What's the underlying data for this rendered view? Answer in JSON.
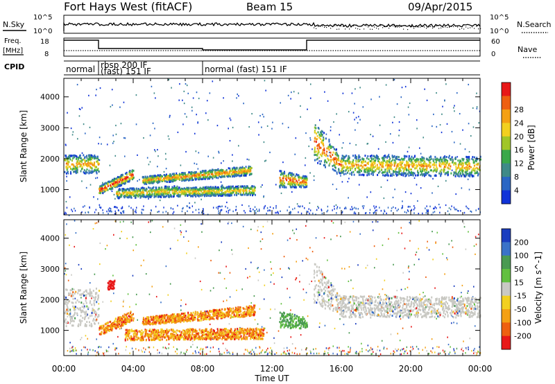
{
  "header": {
    "title": "Fort Hays West (fitACF)",
    "beam": "Beam 15",
    "date": "09/Apr/2015"
  },
  "strip_labels": {
    "nsky": "N.Sky",
    "nsearch": "N.Search",
    "freq_line1": "Freq.",
    "freq_line2": "[MHz]",
    "nave": "Nave",
    "cpid": "CPID"
  },
  "strip_ticks": {
    "noise_left": [
      "10^5",
      "10^0"
    ],
    "noise_right": [
      "10^5",
      "10^0"
    ],
    "freq_left": [
      "18",
      "8"
    ],
    "freq_right": [
      "60",
      "0"
    ]
  },
  "cpid_segments": [
    {
      "start": 0.0,
      "end": 2.0,
      "line1": "normal",
      "line2": ""
    },
    {
      "start": 2.0,
      "end": 8.0,
      "line1": "rbsp 200 IF",
      "line2": "(fast) 151 IF"
    },
    {
      "start": 8.0,
      "end": 24.0,
      "line1": "normal (fast) 151 IF",
      "line2": ""
    }
  ],
  "colors": {
    "power_scale": [
      "#1033d8",
      "#2a66c4",
      "#3f8a88",
      "#3aa84a",
      "#a0c628",
      "#f2d020",
      "#f4a014",
      "#ee6010",
      "#e81818"
    ],
    "velocity_scale": [
      "#1a3dbf",
      "#3a72c8",
      "#4a9a52",
      "#62c040",
      "#c9c9c4",
      "#f2d020",
      "#f4a014",
      "#ee6010",
      "#e81818"
    ],
    "ground_scatter": "#c8c8c2"
  },
  "chart_data": [
    {
      "type": "heatmap",
      "panel": "power",
      "ylabel": "Slant Range [km]",
      "xlabel": "Time UT",
      "colorbar_label": "Power [dB]",
      "colorbar_ticks": [
        "4",
        "8",
        "12",
        "16",
        "20",
        "24",
        "28"
      ],
      "xlim": [
        0,
        24
      ],
      "ylim": [
        180,
        4600
      ],
      "yticks": [
        1000,
        2000,
        3000,
        4000
      ],
      "xtick_labels": [
        "00:00",
        "04:00",
        "08:00",
        "12:00",
        "16:00",
        "20:00",
        "00:00"
      ],
      "scatter_bands": [
        {
          "t": [
            0.0,
            2.0
          ],
          "r_low": [
            1550,
            1550
          ],
          "r_high": [
            2150,
            2150
          ],
          "level": 0.55
        },
        {
          "t": [
            2.0,
            4.0
          ],
          "r_low": [
            850,
            1350
          ],
          "r_high": [
            1150,
            1700
          ],
          "level": 0.75
        },
        {
          "t": [
            3.0,
            6.5
          ],
          "r_low": [
            750,
            800
          ],
          "r_high": [
            1050,
            1150
          ],
          "level": 0.5
        },
        {
          "t": [
            4.5,
            10.8
          ],
          "r_low": [
            1200,
            1500
          ],
          "r_high": [
            1450,
            1800
          ],
          "level": 0.6
        },
        {
          "t": [
            6.5,
            11.0
          ],
          "r_low": [
            800,
            850
          ],
          "r_high": [
            1100,
            1150
          ],
          "level": 0.5
        },
        {
          "t": [
            12.4,
            14.0
          ],
          "r_low": [
            1100,
            1100
          ],
          "r_high": [
            1650,
            1450
          ],
          "level": 0.7
        },
        {
          "t": [
            14.4,
            16.0
          ],
          "r_low": [
            1900,
            1500
          ],
          "r_high": [
            3300,
            2100
          ],
          "level": 0.65
        },
        {
          "t": [
            16.0,
            24.0
          ],
          "r_low": [
            1500,
            1450
          ],
          "r_high": [
            2150,
            2100
          ],
          "level": 0.55
        }
      ]
    },
    {
      "type": "heatmap",
      "panel": "velocity",
      "ylabel": "Slant Range [km]",
      "xlabel": "Time UT",
      "colorbar_label": "Velocity [m s^-1]",
      "colorbar_ticks": [
        "200",
        "100",
        "50",
        "15",
        "-15",
        "-50",
        "-100",
        "-200"
      ],
      "xlim": [
        0,
        24
      ],
      "ylim": [
        180,
        4600
      ],
      "yticks": [
        1000,
        2000,
        3000,
        4000
      ],
      "xtick_labels": [
        "00:00",
        "04:00",
        "08:00",
        "12:00",
        "16:00",
        "20:00",
        "00:00"
      ],
      "scatter_bands": [
        {
          "t": [
            0.0,
            2.0
          ],
          "r_low": [
            1150,
            1150
          ],
          "r_high": [
            2400,
            2400
          ],
          "level": 0.55
        },
        {
          "t": [
            2.0,
            4.0
          ],
          "r_low": [
            850,
            1350
          ],
          "r_high": [
            1150,
            1700
          ],
          "level": 0.6
        },
        {
          "t": [
            2.5,
            2.9
          ],
          "r_low": [
            2350,
            2350
          ],
          "r_high": [
            2650,
            2650
          ],
          "level": 0.9
        },
        {
          "t": [
            4.5,
            11.0
          ],
          "r_low": [
            1200,
            1500
          ],
          "r_high": [
            1450,
            1850
          ],
          "level": 0.72
        },
        {
          "t": [
            3.5,
            11.5
          ],
          "r_low": [
            700,
            750
          ],
          "r_high": [
            1050,
            1100
          ],
          "level": 0.62
        },
        {
          "t": [
            12.4,
            14.0
          ],
          "r_low": [
            1100,
            1100
          ],
          "r_high": [
            1650,
            1450
          ],
          "level": 0.3
        },
        {
          "t": [
            14.4,
            16.0
          ],
          "r_low": [
            1900,
            1500
          ],
          "r_high": [
            3300,
            2100
          ],
          "level": 0.5
        },
        {
          "t": [
            16.0,
            24.0
          ],
          "r_low": [
            1450,
            1450
          ],
          "r_high": [
            2150,
            2100
          ],
          "level": 0.5
        }
      ]
    }
  ]
}
